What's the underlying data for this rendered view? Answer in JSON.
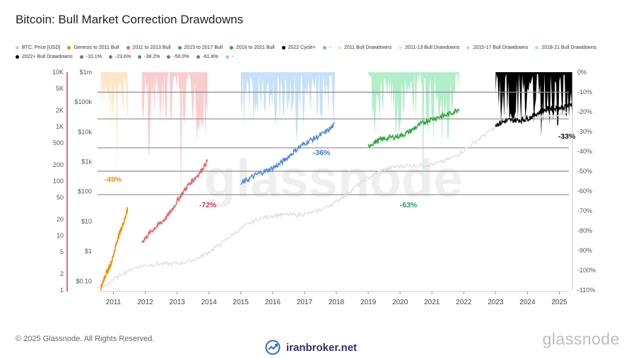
{
  "title": "Bitcoin: Bull Market Correction Drawdowns",
  "legend": [
    {
      "label": "BTC: Price [USD]",
      "color": "#d0d0d0"
    },
    {
      "label": "Genesis to 2011 Bull",
      "color": "#f28c00"
    },
    {
      "label": "2011 to 2013 Bull",
      "color": "#e8676a"
    },
    {
      "label": "2015 to 2017 Bull",
      "color": "#4a88e4"
    },
    {
      "label": "2018 to 2021 Bull",
      "color": "#2aa83c"
    },
    {
      "label": "2022 Cycle+",
      "color": "#000000"
    },
    {
      "label": "-",
      "color": "#6fb2f2"
    },
    {
      "label": "2011 Bull Drawdowns",
      "color": "#fbe0be"
    },
    {
      "label": "2011-13 Bull Drawdowns",
      "color": "#fde2c8"
    },
    {
      "label": "2015-17 Bull Drawdowns",
      "color": "#bcdcf8"
    },
    {
      "label": "2018-21 Bull Drawdowns",
      "color": "#a4ebc0"
    },
    {
      "label": "2022+ Bull Drawdowns",
      "color": "#000000"
    },
    {
      "label": "-10.1%",
      "color": "#7a7a7a"
    },
    {
      "label": "-23.6%",
      "color": "#7a7a7a"
    },
    {
      "label": "-38.2%",
      "color": "#7a7a7a"
    },
    {
      "label": "-50.0%",
      "color": "#7a7a7a"
    },
    {
      "label": "-61.8%",
      "color": "#7a7a7a"
    },
    {
      "label": "-",
      "color": "#9ed8a8"
    }
  ],
  "chart_data": {
    "type": "line",
    "x_ticks": [
      "2011",
      "2012",
      "2013",
      "2014",
      "2015",
      "2016",
      "2017",
      "2018",
      "2019",
      "2020",
      "2021",
      "2022",
      "2023",
      "2024",
      "2025"
    ],
    "y_left_outer_ticks": [
      "10K",
      "5K",
      "2K",
      "1K",
      "500",
      "200",
      "100",
      "50",
      "20",
      "10",
      "5",
      "2",
      "1"
    ],
    "y_left_inner_ticks": [
      "$1m",
      "$100k",
      "$10k",
      "$1k",
      "$100",
      "$10",
      "$1",
      "$0.10"
    ],
    "y_right_ticks": [
      "0%",
      "-10%",
      "-20%",
      "-30%",
      "-40%",
      "-50%",
      "-60%",
      "-70%",
      "-80%",
      "-90%",
      "-100%",
      "-110%"
    ],
    "reference_lines": [
      -10.1,
      -23.6,
      -38.2,
      -50.0,
      -61.8
    ],
    "scale": "log",
    "annotations": [
      {
        "text": "-49%",
        "color": "#f28c00"
      },
      {
        "text": "-72%",
        "color": "#e0336a"
      },
      {
        "text": "-36%",
        "color": "#3a78d8"
      },
      {
        "text": "-63%",
        "color": "#22a060"
      },
      {
        "text": "-33%",
        "color": "#111111"
      }
    ],
    "series": [
      {
        "name": "Genesis to 2011 Bull",
        "color": "#f28c00",
        "start": 2010.6,
        "end": 2011.45,
        "v_start": 0.06,
        "v_end": 30
      },
      {
        "name": "2011 to 2013 Bull",
        "color": "#e8676a",
        "start": 2011.9,
        "end": 2013.95,
        "v_start": 2.1,
        "v_end": 1150
      },
      {
        "name": "2015 to 2017 Bull",
        "color": "#4a88e4",
        "start": 2015.0,
        "end": 2017.95,
        "v_start": 180,
        "v_end": 19000
      },
      {
        "name": "2018 to 2021 Bull",
        "color": "#2aa83c",
        "start": 2019.0,
        "end": 2021.85,
        "v_start": 3500,
        "v_end": 65000
      },
      {
        "name": "2022 Cycle+",
        "color": "#000000",
        "start": 2023.0,
        "end": 2025.4,
        "v_start": 17000,
        "v_end": 95000
      }
    ],
    "drawdown_bands": [
      {
        "name": "2011 Bull Drawdowns",
        "color": "#fbe0be",
        "start": 2010.6,
        "end": 2011.45,
        "max_dd": -49
      },
      {
        "name": "2011-13 Bull Drawdowns",
        "color": "#f9c4c6",
        "start": 2011.9,
        "end": 2013.95,
        "max_dd": -72
      },
      {
        "name": "2015-17 Bull Drawdowns",
        "color": "#bcdcf8",
        "start": 2015.0,
        "end": 2017.95,
        "max_dd": -36
      },
      {
        "name": "2018-21 Bull Drawdowns",
        "color": "#a4ebc0",
        "start": 2019.0,
        "end": 2021.85,
        "max_dd": -63
      },
      {
        "name": "2022+ Bull Drawdowns",
        "color": "#000000",
        "start": 2023.0,
        "end": 2025.4,
        "max_dd": -33
      }
    ]
  },
  "footer": "© 2025 Glassnode. All Rights Reserved.",
  "brand": "glassnode",
  "watermark": "glassnode",
  "iranbroker": "iranbroker.net"
}
